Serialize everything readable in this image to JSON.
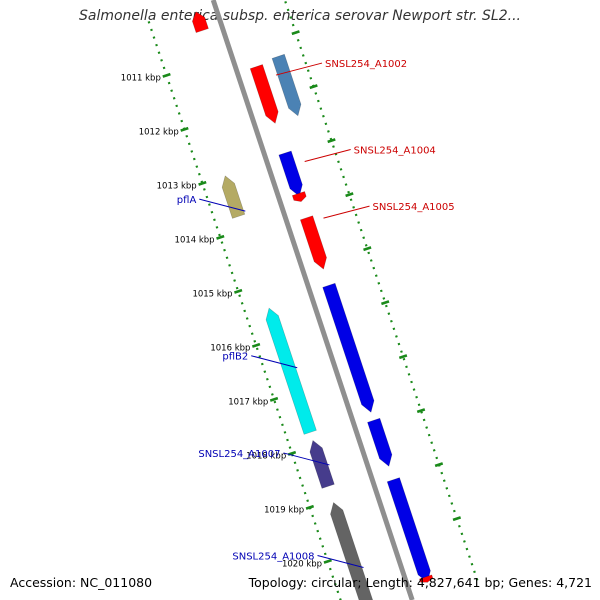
{
  "title": "Salmonella enterica subsp. enterica serovar Newport str. SL2...",
  "accession": "Accession: NC_011080",
  "topology": "Topology: circular; Length: 4,827,641 bp; Genes: 4,721",
  "colors": {
    "backbone": "#8f8f8f",
    "ticks": "#1a8a1a",
    "tick_label": "#000000",
    "forward_label": "#cc0000",
    "reverse_label": "#0000b4",
    "red_gene": "#ff0000",
    "steelblue_gene": "#4b82b4",
    "blue_gene": "#0000e6",
    "khaki_gene": "#b4aa64",
    "cyan_gene": "#00ebeb",
    "purple_gene": "#463c8c",
    "gray_gene": "#646464"
  },
  "ticks": [
    {
      "kbp": 1011,
      "label": "1011 kbp"
    },
    {
      "kbp": 1012,
      "label": "1012 kbp"
    },
    {
      "kbp": 1013,
      "label": "1013 kbp"
    },
    {
      "kbp": 1014,
      "label": "1014 kbp"
    },
    {
      "kbp": 1015,
      "label": "1015 kbp"
    },
    {
      "kbp": 1016,
      "label": "1016 kbp"
    },
    {
      "kbp": 1017,
      "label": "1017 kbp"
    },
    {
      "kbp": 1018,
      "label": "1018 kbp"
    },
    {
      "kbp": 1019,
      "label": "1019 kbp"
    },
    {
      "kbp": 1020,
      "label": "1020 kbp"
    }
  ],
  "features": [
    {
      "start": 1010.1,
      "end": 1010.45,
      "strand": "reverse",
      "lane": 1,
      "color": "red"
    },
    {
      "start": 1011.35,
      "end": 1012.4,
      "strand": "forward",
      "lane": 1,
      "color": "red"
    },
    {
      "start": 1011.3,
      "end": 1012.4,
      "strand": "forward",
      "lane": 2,
      "color": "steelblue"
    },
    {
      "start": 1013.0,
      "end": 1013.75,
      "strand": "reverse",
      "lane": 2,
      "color": "khaki"
    },
    {
      "start": 1012.95,
      "end": 1013.75,
      "strand": "forward",
      "lane": 1,
      "color": "blue"
    },
    {
      "start": 1013.7,
      "end": 1013.85,
      "strand": "forward",
      "lane": 0,
      "color": "red"
    },
    {
      "start": 1014.15,
      "end": 1015.1,
      "strand": "forward",
      "lane": 0,
      "color": "red"
    },
    {
      "start": 1015.45,
      "end": 1017.75,
      "strand": "reverse",
      "lane": 2,
      "color": "cyan"
    },
    {
      "start": 1015.4,
      "end": 1017.75,
      "strand": "forward",
      "lane": 1,
      "color": "blue"
    },
    {
      "start": 1017.9,
      "end": 1018.75,
      "strand": "reverse",
      "lane": 2,
      "color": "purple"
    },
    {
      "start": 1017.9,
      "end": 1018.75,
      "strand": "forward",
      "lane": 1,
      "color": "blue"
    },
    {
      "start": 1019.05,
      "end": 1020.9,
      "strand": "reverse",
      "lane": 2,
      "color": "gray"
    },
    {
      "start": 1019.0,
      "end": 1020.9,
      "strand": "forward",
      "lane": 1,
      "color": "blue"
    },
    {
      "start": 1020.8,
      "end": 1020.9,
      "strand": "forward",
      "lane": 0,
      "color": "red"
    }
  ],
  "labels": [
    {
      "text": "SNSL254_A1002",
      "side": "right",
      "kbp": 1011.6,
      "color": "red"
    },
    {
      "text": "SNSL254_A1004",
      "side": "right",
      "kbp": 1013.2,
      "color": "red"
    },
    {
      "text": "SNSL254_A1005",
      "side": "right",
      "kbp": 1014.25,
      "color": "red"
    },
    {
      "text": "pflA",
      "side": "left",
      "kbp": 1013.7,
      "color": "blue"
    },
    {
      "text": "pflB2",
      "side": "left",
      "kbp": 1016.6,
      "color": "blue"
    },
    {
      "text": "SNSL254_A1007",
      "side": "left",
      "kbp": 1018.4,
      "color": "blue"
    },
    {
      "text": "SNSL254_A1008",
      "side": "left",
      "kbp": 1020.3,
      "color": "blue"
    }
  ]
}
